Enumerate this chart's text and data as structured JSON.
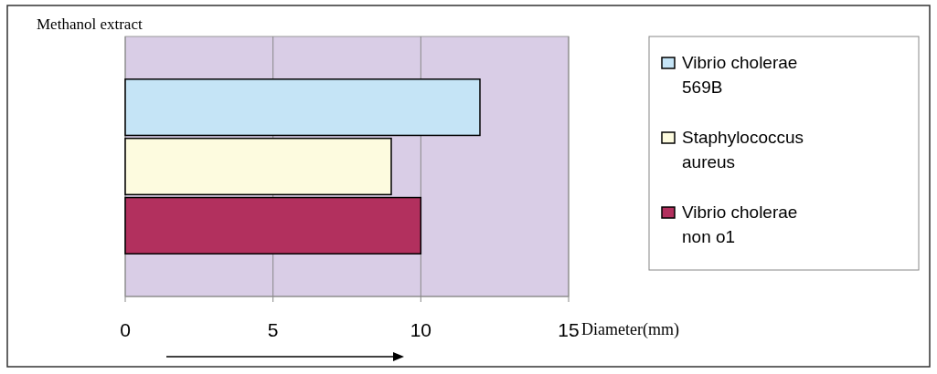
{
  "chart_data": {
    "type": "bar",
    "orientation": "horizontal",
    "title": "Methanol extract",
    "xlabel": "Diameter(mm)",
    "categories": [
      null
    ],
    "series": [
      {
        "name": "Vibrio cholerae 569B",
        "color": "#c5e4f6",
        "values": [
          12
        ]
      },
      {
        "name": "Staphylococcus aureus",
        "color": "#fdfbdf",
        "values": [
          9
        ]
      },
      {
        "name": "Vibrio cholerae non o1",
        "color": "#b2305e",
        "values": [
          10
        ]
      }
    ],
    "xlim": [
      0,
      15
    ],
    "xticks": [
      0,
      5,
      10,
      15
    ],
    "grid": "x",
    "legend": "right"
  }
}
